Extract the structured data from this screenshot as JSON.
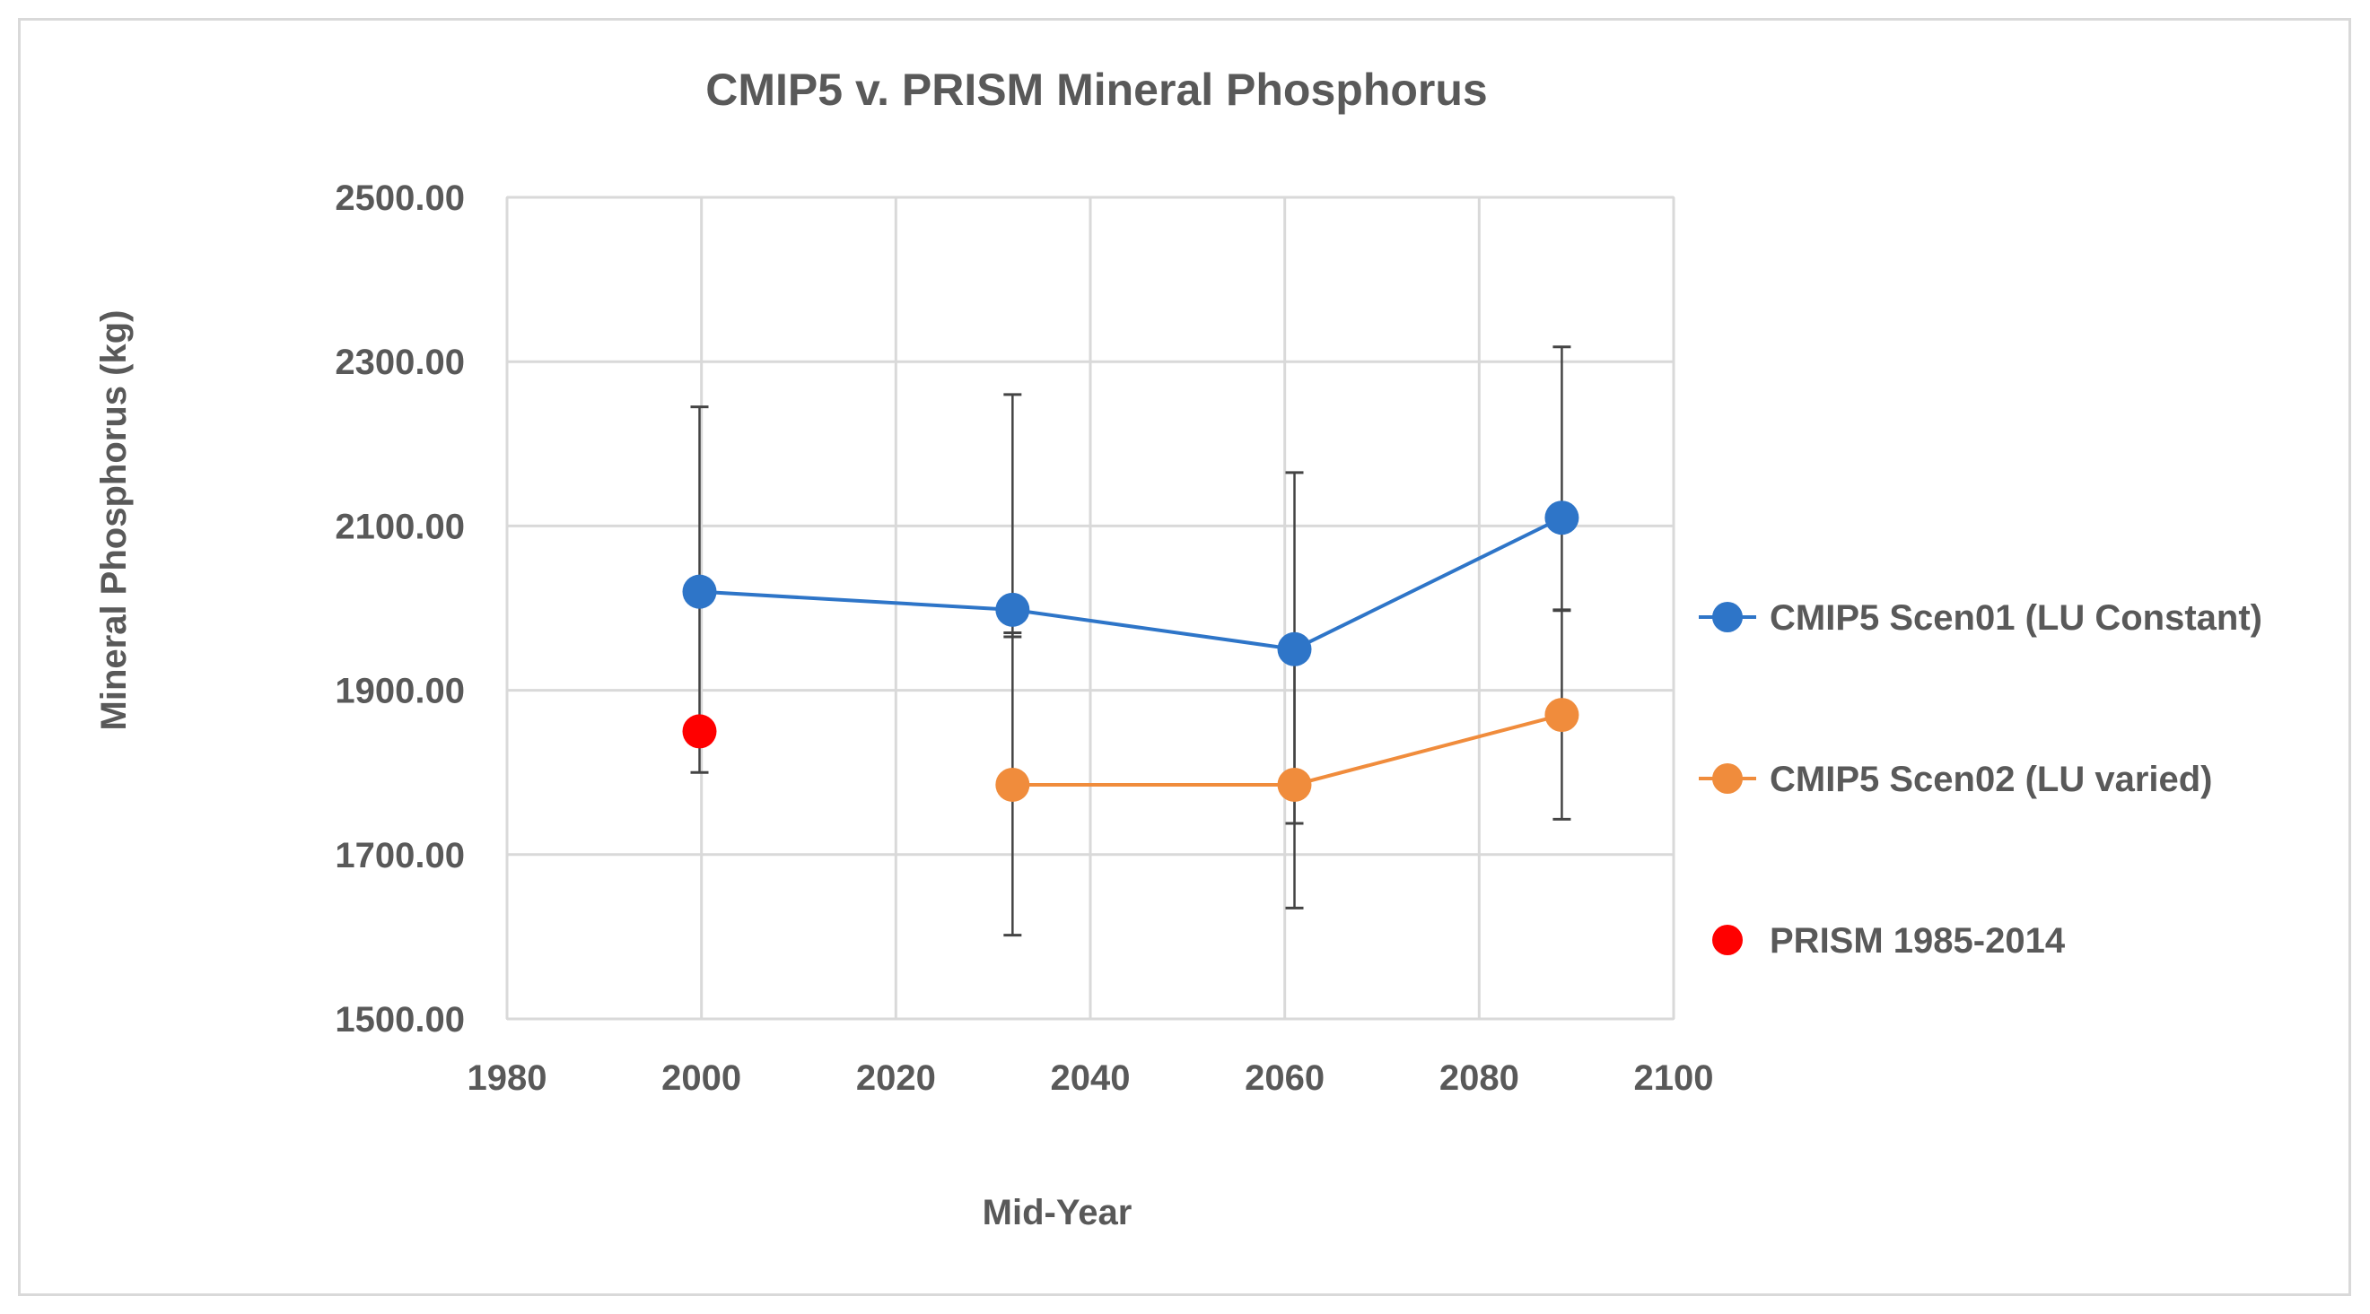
{
  "chart_data": {
    "type": "line",
    "title": "CMIP5 v. PRISM Mineral Phosphorus",
    "xlabel": "Mid-Year",
    "ylabel": "Mineral Phosphorus (kg)",
    "xlim": [
      1980,
      2100
    ],
    "ylim": [
      1500,
      2500
    ],
    "x_ticks": [
      "1980",
      "2000",
      "2020",
      "2040",
      "2060",
      "2080",
      "2100"
    ],
    "x_tick_values": [
      1980,
      2000,
      2020,
      2040,
      2060,
      2080,
      2100
    ],
    "y_ticks": [
      "1500.00",
      "1700.00",
      "1900.00",
      "2100.00",
      "2300.00",
      "2500.00"
    ],
    "y_tick_values": [
      1500,
      1700,
      1900,
      2100,
      2300,
      2500
    ],
    "grid": true,
    "legend_position": "right",
    "series": [
      {
        "name": "CMIP5 Scen01 (LU Constant)",
        "color": "#2e75c8",
        "line": true,
        "x": [
          1999.8,
          2032,
          2061,
          2088.5
        ],
        "values": [
          2020,
          1998,
          1950,
          2110
        ],
        "err_low": [
          1800,
          1965,
          1738,
          1997
        ],
        "err_high": [
          2245,
          2260,
          2165,
          2318
        ]
      },
      {
        "name": "CMIP5 Scen02 (LU varied)",
        "color": "#f08c3c",
        "line": true,
        "x": [
          2032,
          2061,
          2088.5
        ],
        "values": [
          1785,
          1785,
          1870
        ],
        "err_low": [
          1602,
          1635,
          1743
        ],
        "err_high": [
          1970,
          1940,
          1998
        ]
      },
      {
        "name": "PRISM 1985-2014",
        "color": "#ff0000",
        "line": false,
        "x": [
          1999.8
        ],
        "values": [
          1850
        ],
        "err_low": [],
        "err_high": []
      }
    ]
  }
}
